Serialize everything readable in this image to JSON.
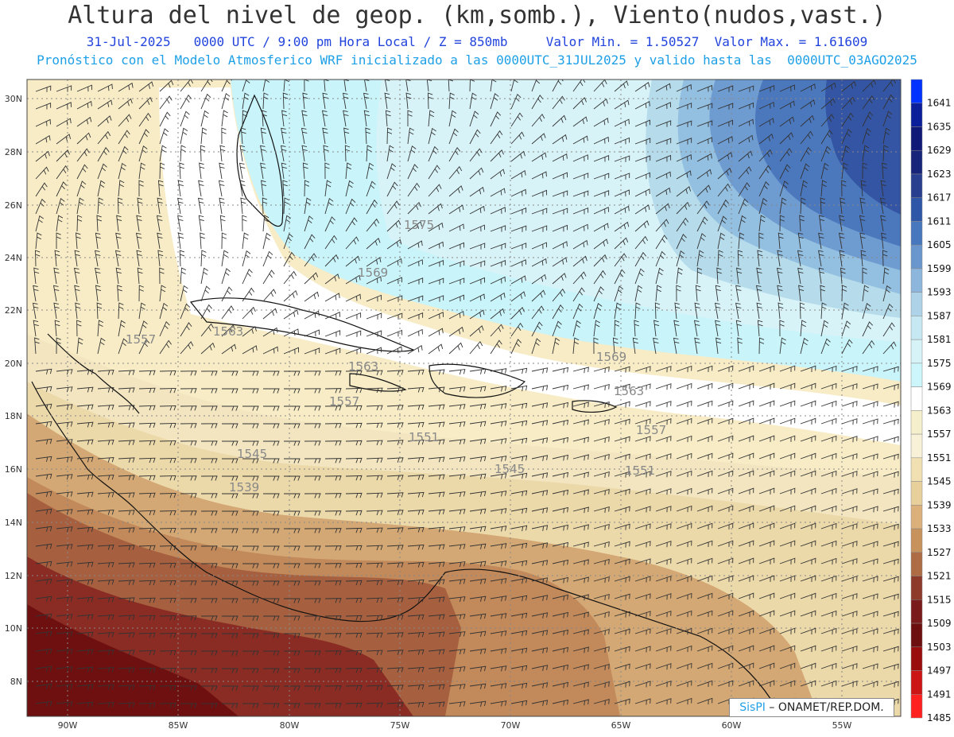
{
  "header": {
    "title": "Altura del nivel de geop. (km,somb.), Viento(nudos,vast.)",
    "line1": "31-Jul-2025   0000 UTC / 9:00 pm Hora Local / Z = 850mb     Valor Min. = 1.50527  Valor Max. = 1.61609",
    "line2": "Pronóstico con el Modelo Atmosferico WRF inicializado a las 0000UTC_31JUL2025 y valido hasta las  0000UTC_03AGO2025"
  },
  "axes": {
    "lon_labels": [
      "90W",
      "85W",
      "80W",
      "75W",
      "70W",
      "65W",
      "60W",
      "55W"
    ],
    "lat_labels": [
      "30N",
      "28N",
      "26N",
      "24N",
      "22N",
      "20N",
      "18N",
      "16N",
      "14N",
      "12N",
      "10N",
      "8N"
    ]
  },
  "colorbar": {
    "levels": [
      "1641",
      "1635",
      "1629",
      "1623",
      "1617",
      "1611",
      "1605",
      "1599",
      "1593",
      "1587",
      "1581",
      "1575",
      "1569",
      "1563",
      "1557",
      "1551",
      "1545",
      "1539",
      "1533",
      "1527",
      "1521",
      "1515",
      "1509",
      "1503",
      "1497",
      "1491",
      "1485"
    ],
    "colors": [
      "#0033ff",
      "#0b1f9a",
      "#101878",
      "#16247a",
      "#283f8f",
      "#2f57a8",
      "#4777bd",
      "#6996cc",
      "#8db6dd",
      "#aed3e8",
      "#c6e8f2",
      "#d6f3f8",
      "#ccf6fb",
      "#ffffff",
      "#f6efcc",
      "#f8f1d8",
      "#f0e0b2",
      "#e8d09c",
      "#dbb07a",
      "#c7925c",
      "#ae6c45",
      "#8d3a2a",
      "#7a1a1a",
      "#6e0f0f",
      "#9a0d0d",
      "#cc1616",
      "#ff2020"
    ]
  },
  "contour_labels": [
    {
      "text": "1575"
    },
    {
      "text": "1569"
    },
    {
      "text": "1563"
    },
    {
      "text": "1557"
    },
    {
      "text": "1569"
    },
    {
      "text": "1563"
    },
    {
      "text": "1557"
    },
    {
      "text": "1551"
    },
    {
      "text": "1545"
    },
    {
      "text": "1551"
    },
    {
      "text": "1545"
    },
    {
      "text": "1539"
    },
    {
      "text": "1563"
    },
    {
      "text": "1557"
    }
  ],
  "credit": {
    "brand": "SisPI",
    "text": "– ONAMET/REP.DOM."
  }
}
